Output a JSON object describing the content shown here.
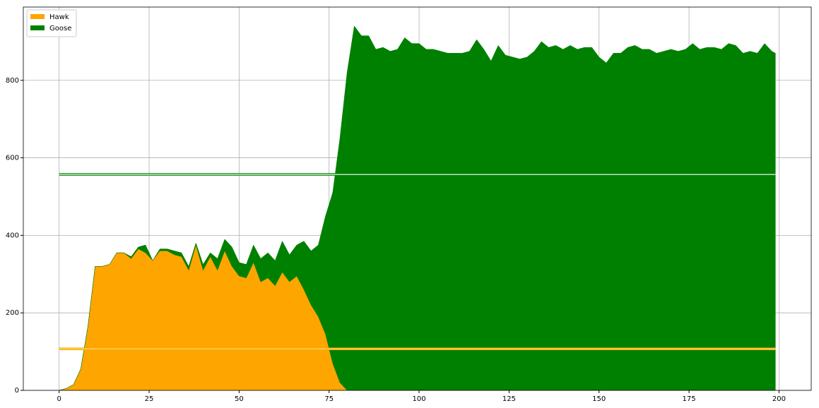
{
  "chart_data": {
    "type": "stackplot",
    "x": [
      0,
      2,
      4,
      6,
      8,
      10,
      12,
      14,
      16,
      18,
      20,
      22,
      24,
      26,
      28,
      30,
      32,
      34,
      36,
      38,
      40,
      42,
      44,
      46,
      48,
      50,
      52,
      54,
      56,
      58,
      60,
      62,
      64,
      66,
      68,
      70,
      72,
      74,
      76,
      78,
      80,
      82,
      84,
      86,
      88,
      90,
      92,
      94,
      96,
      98,
      100,
      102,
      104,
      106,
      108,
      110,
      112,
      114,
      116,
      118,
      120,
      122,
      124,
      126,
      128,
      130,
      132,
      134,
      136,
      138,
      140,
      142,
      144,
      146,
      148,
      150,
      152,
      154,
      156,
      158,
      160,
      162,
      164,
      166,
      168,
      170,
      172,
      174,
      176,
      178,
      180,
      182,
      184,
      186,
      188,
      190,
      192,
      194,
      196,
      198,
      199
    ],
    "series": [
      {
        "name": "Hawk",
        "color": "orange",
        "values": [
          0,
          5,
          15,
          55,
          165,
          320,
          320,
          325,
          355,
          355,
          340,
          365,
          355,
          335,
          360,
          360,
          350,
          345,
          310,
          375,
          310,
          345,
          310,
          360,
          320,
          295,
          290,
          330,
          280,
          290,
          270,
          305,
          280,
          295,
          260,
          220,
          190,
          145,
          70,
          20,
          0,
          0,
          0,
          0,
          0,
          0,
          0,
          0,
          0,
          0,
          0,
          0,
          0,
          0,
          0,
          0,
          0,
          0,
          0,
          0,
          0,
          0,
          0,
          0,
          0,
          0,
          0,
          0,
          0,
          0,
          0,
          0,
          0,
          0,
          0,
          0,
          0,
          0,
          0,
          0,
          0,
          0,
          0,
          0,
          0,
          0,
          0,
          0,
          0,
          0,
          0,
          0,
          0,
          0,
          0,
          0,
          0,
          0,
          0,
          0,
          0
        ]
      },
      {
        "name": "Goose",
        "color": "green",
        "values": [
          0,
          0,
          0,
          0,
          0,
          0,
          0,
          0,
          0,
          0,
          5,
          5,
          20,
          0,
          5,
          5,
          10,
          10,
          10,
          5,
          15,
          10,
          30,
          30,
          50,
          35,
          35,
          45,
          60,
          65,
          65,
          80,
          70,
          80,
          125,
          140,
          185,
          305,
          440,
          630,
          820,
          940,
          915,
          915,
          880,
          885,
          875,
          880,
          910,
          895,
          895,
          880,
          880,
          875,
          870,
          870,
          870,
          875,
          905,
          880,
          850,
          890,
          865,
          860,
          855,
          860,
          875,
          900,
          885,
          890,
          880,
          890,
          880,
          885,
          885,
          860,
          845,
          870,
          870,
          885,
          890,
          880,
          880,
          870,
          875,
          880,
          875,
          880,
          895,
          880,
          885,
          885,
          880,
          895,
          890,
          870,
          875,
          870,
          895,
          875,
          870
        ]
      }
    ],
    "hlines": [
      {
        "y": 557,
        "xmin": 0,
        "xmax": 199,
        "color": "green"
      },
      {
        "y": 107,
        "xmin": 0,
        "xmax": 199,
        "color": "orange"
      }
    ],
    "xlim": [
      -9.95,
      208.95
    ],
    "ylim": [
      0,
      989
    ],
    "xticks": [
      0,
      25,
      50,
      75,
      100,
      125,
      150,
      175,
      200
    ],
    "yticks": [
      0,
      200,
      400,
      600,
      800
    ],
    "grid": true,
    "legend": "upper left"
  }
}
